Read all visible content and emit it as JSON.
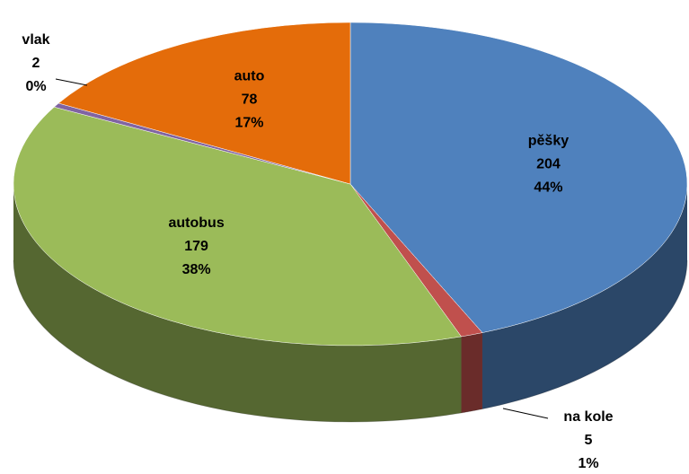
{
  "chart_data": {
    "type": "pie3d",
    "categories": [
      "pěšky",
      "na kole",
      "autobus",
      "vlak",
      "auto"
    ],
    "values": [
      204,
      5,
      179,
      2,
      78
    ],
    "percent_labels": [
      "44%",
      "1%",
      "38%",
      "0%",
      "17%"
    ],
    "colors": [
      "#4f81bd",
      "#c0504d",
      "#9bbb59",
      "#8064a2",
      "#e46c0a"
    ]
  }
}
